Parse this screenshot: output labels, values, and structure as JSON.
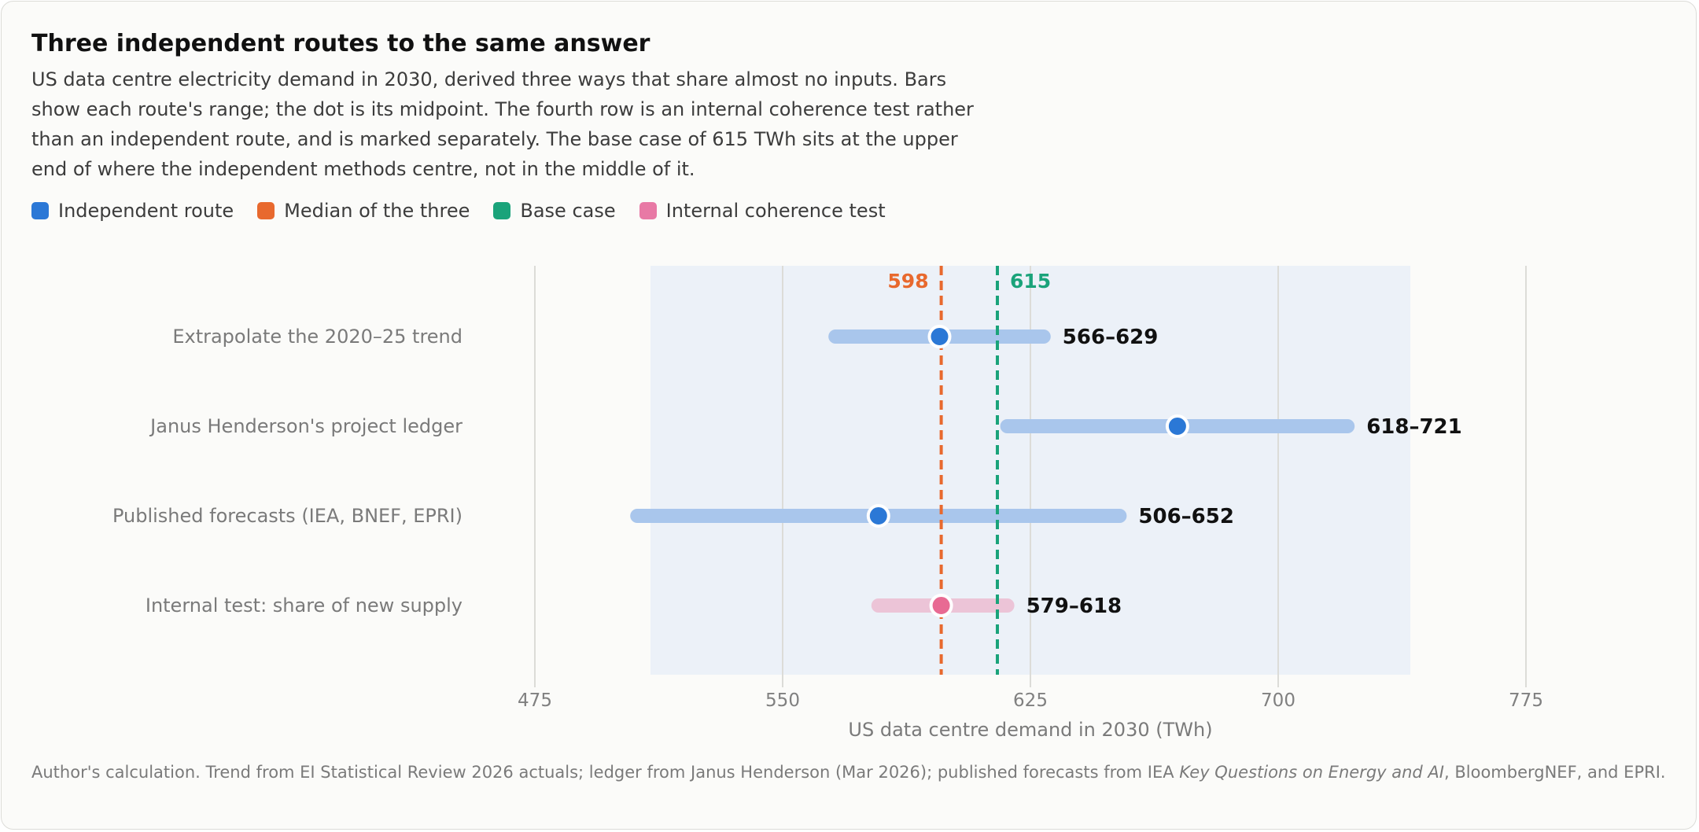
{
  "title": "Three independent routes to the same answer",
  "subtitle": "US data centre electricity demand in 2030, derived three ways that share almost no inputs. Bars show each route's range; the dot is its midpoint. The fourth row is an internal coherence test rather than an independent route, and is marked separately. The base case of 615 TWh sits at the upper end of where the independent methods centre, not in the middle of it.",
  "legend": [
    {
      "label": "Independent route",
      "color": "#2b78d6"
    },
    {
      "label": "Median of the three",
      "color": "#e8692e"
    },
    {
      "label": "Base case",
      "color": "#1aa37a"
    },
    {
      "label": "Internal coherence test",
      "color": "#e879a5"
    }
  ],
  "footer": {
    "part1": "Author's calculation. Trend from EI Statistical Review 2026 actuals; ledger from Janus Henderson (Mar 2026); published forecasts from IEA ",
    "italic": "Key Questions on Energy and AI",
    "part2": ", BloombergNEF, and EPRI."
  },
  "chart_data": {
    "type": "range_dot",
    "xlabel": "US data centre demand in 2030 (TWh)",
    "xlim": [
      475,
      775
    ],
    "xticks": [
      475,
      550,
      625,
      700,
      775
    ],
    "shaded_band": [
      510,
      740
    ],
    "grid": true,
    "rows": [
      {
        "label": "Extrapolate the 2020–25 trend",
        "low": 566,
        "high": 629,
        "mid": 597.5,
        "range_label": "566–629",
        "kind": "independent"
      },
      {
        "label": "Janus Henderson's project ledger",
        "low": 618,
        "high": 721,
        "mid": 669.5,
        "range_label": "618–721",
        "kind": "independent"
      },
      {
        "label": "Published forecasts (IEA, BNEF, EPRI)",
        "low": 506,
        "high": 652,
        "mid": 579,
        "range_label": "506–652",
        "kind": "independent"
      },
      {
        "label": "Internal test: share of new supply",
        "low": 579,
        "high": 618,
        "mid": 598,
        "range_label": "579–618",
        "kind": "internal"
      }
    ],
    "reference_lines": [
      {
        "name": "Median of the three",
        "value": 598,
        "label": "598",
        "color": "#e8692e"
      },
      {
        "name": "Base case",
        "value": 615,
        "label": "615",
        "color": "#1aa37a"
      }
    ],
    "colors": {
      "independent_bar": "#a9c6ec",
      "independent_dot": "#2b78d6",
      "internal_bar": "#ecc4d7",
      "internal_dot": "#e86a93",
      "band": "#ecf1f8",
      "grid": "#dcdcd8"
    }
  }
}
